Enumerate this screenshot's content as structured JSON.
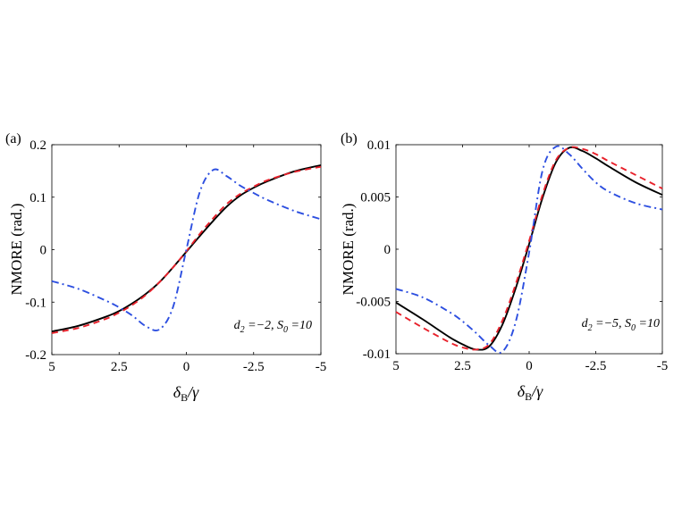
{
  "chart_data": [
    {
      "type": "line",
      "panel_label": "(a)",
      "ylabel": "NMORE (rad.)",
      "xlabel_symbol": "δ",
      "xlabel_sub": "B",
      "xlabel_tail": "/γ",
      "xlim": [
        5,
        -5
      ],
      "ylim": [
        -0.2,
        0.2
      ],
      "xticks": [
        5,
        2.5,
        0,
        -2.5,
        -5
      ],
      "xtick_labels": [
        "5",
        "2.5",
        "0",
        "-2.5",
        "-5"
      ],
      "yticks": [
        0.2,
        0.1,
        0,
        -0.1,
        -0.2
      ],
      "ytick_labels": [
        "0.2",
        "0.1",
        "0",
        "-0.1",
        "-0.2"
      ],
      "annotation": {
        "d_sym": "d",
        "d_sub": "2",
        "d_val": " =−2, ",
        "s_sym": "S",
        "s_sub": "0",
        "s_val": " =10"
      },
      "x": [
        5,
        4,
        3,
        2.5,
        2,
        1.5,
        1,
        0.5,
        0,
        -0.5,
        -1,
        -1.5,
        -2,
        -2.5,
        -3,
        -4,
        -5
      ],
      "series": [
        {
          "name": "solid",
          "color": "#000000",
          "dash": "",
          "values": [
            -0.156,
            -0.145,
            -0.128,
            -0.117,
            -0.102,
            -0.084,
            -0.062,
            -0.034,
            -0.004,
            0.026,
            0.055,
            0.082,
            0.103,
            0.118,
            0.13,
            0.149,
            0.161
          ]
        },
        {
          "name": "dashed",
          "color": "#e8212b",
          "dash": "7,5",
          "values": [
            -0.159,
            -0.149,
            -0.132,
            -0.12,
            -0.105,
            -0.086,
            -0.062,
            -0.034,
            -0.003,
            0.03,
            0.06,
            0.087,
            0.106,
            0.12,
            0.132,
            0.148,
            0.158
          ]
        },
        {
          "name": "dash-dot",
          "color": "#2d4fe0",
          "dash": "8,4,2,4",
          "values": [
            -0.06,
            -0.075,
            -0.097,
            -0.11,
            -0.126,
            -0.146,
            -0.152,
            -0.11,
            0.0,
            0.11,
            0.152,
            0.14,
            0.122,
            0.108,
            0.095,
            0.074,
            0.058
          ]
        }
      ]
    },
    {
      "type": "line",
      "panel_label": "(b)",
      "ylabel": "NMORE (rad.)",
      "xlabel_symbol": "δ",
      "xlabel_sub": "B",
      "xlabel_tail": "/γ",
      "xlim": [
        5,
        -5
      ],
      "ylim": [
        -0.01,
        0.01
      ],
      "xticks": [
        5,
        2.5,
        0,
        -2.5,
        -5
      ],
      "xtick_labels": [
        "5",
        "2.5",
        "0",
        "-2.5",
        "-5"
      ],
      "yticks": [
        0.01,
        0.005,
        0,
        -0.005,
        -0.01
      ],
      "ytick_labels": [
        "0.01",
        "0.005",
        "0",
        "-0.005",
        "-0.01"
      ],
      "annotation": {
        "d_sym": "d",
        "d_sub": "2",
        "d_val": " =−5, ",
        "s_sym": "S",
        "s_sub": "0",
        "s_val": " =10"
      },
      "x": [
        5,
        4,
        3,
        2.5,
        2,
        1.5,
        1,
        0.5,
        0,
        -0.5,
        -1,
        -1.5,
        -2,
        -2.5,
        -3,
        -4,
        -5
      ],
      "series": [
        {
          "name": "solid",
          "color": "#000000",
          "dash": "",
          "values": [
            -0.0051,
            -0.0067,
            -0.0084,
            -0.0091,
            -0.0096,
            -0.0093,
            -0.0072,
            -0.0037,
            0.0005,
            0.0049,
            0.0083,
            0.0097,
            0.0094,
            0.0087,
            0.0079,
            0.0064,
            0.0052
          ]
        },
        {
          "name": "dashed",
          "color": "#e8212b",
          "dash": "7,5",
          "values": [
            -0.006,
            -0.0075,
            -0.0089,
            -0.0094,
            -0.0096,
            -0.0091,
            -0.0068,
            -0.0033,
            0.0008,
            0.0052,
            0.0085,
            0.0097,
            0.0096,
            0.0091,
            0.0084,
            0.0071,
            0.0058
          ]
        },
        {
          "name": "dash-dot",
          "color": "#2d4fe0",
          "dash": "8,4,2,4",
          "values": [
            -0.0038,
            -0.0046,
            -0.006,
            -0.0069,
            -0.008,
            -0.0092,
            -0.0098,
            -0.0069,
            -0.0003,
            0.0075,
            0.0098,
            0.0091,
            0.0077,
            0.0064,
            0.0055,
            0.0044,
            0.0038
          ]
        }
      ]
    }
  ]
}
